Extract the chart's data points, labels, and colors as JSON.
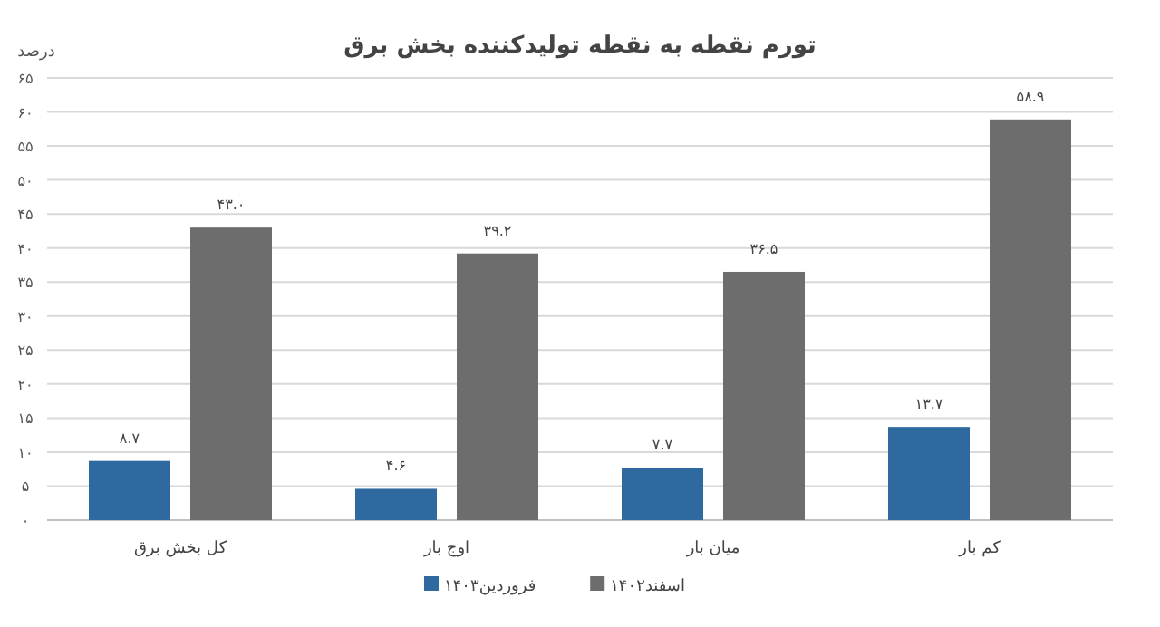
{
  "chart_data": {
    "type": "bar",
    "title": "تورم نقطه به نقطه تولیدکننده بخش برق",
    "ylabel": "درصد",
    "categories": [
      "کل بخش برق",
      "اوج بار",
      "میان بار",
      "کم بار"
    ],
    "series": [
      {
        "name": "فروردین۱۴۰۳",
        "color": "#2e6aa0",
        "values": [
          8.7,
          4.6,
          7.7,
          13.7
        ],
        "value_labels": [
          "۸.۷",
          "۴.۶",
          "۷.۷",
          "۱۳.۷"
        ]
      },
      {
        "name": "اسفند۱۴۰۲",
        "color": "#6d6d6d",
        "values": [
          43.0,
          39.2,
          36.5,
          58.9
        ],
        "value_labels": [
          "۴۳.۰",
          "۳۹.۲",
          "۳۶.۵",
          "۵۸.۹"
        ]
      }
    ],
    "ylim": [
      0,
      65
    ],
    "yticks": [
      {
        "value": 0,
        "label": "۰"
      },
      {
        "value": 5,
        "label": "۵"
      },
      {
        "value": 10,
        "label": "۱۰"
      },
      {
        "value": 15,
        "label": "۱۵"
      },
      {
        "value": 20,
        "label": "۲۰"
      },
      {
        "value": 25,
        "label": "۲۵"
      },
      {
        "value": 30,
        "label": "۳۰"
      },
      {
        "value": 35,
        "label": "۳۵"
      },
      {
        "value": 40,
        "label": "۴۰"
      },
      {
        "value": 45,
        "label": "۴۵"
      },
      {
        "value": 50,
        "label": "۵۰"
      },
      {
        "value": 55,
        "label": "۵۵"
      },
      {
        "value": 60,
        "label": "۶۰"
      },
      {
        "value": 65,
        "label": "۶۵"
      }
    ],
    "grid": "y",
    "legend": "bottom"
  }
}
